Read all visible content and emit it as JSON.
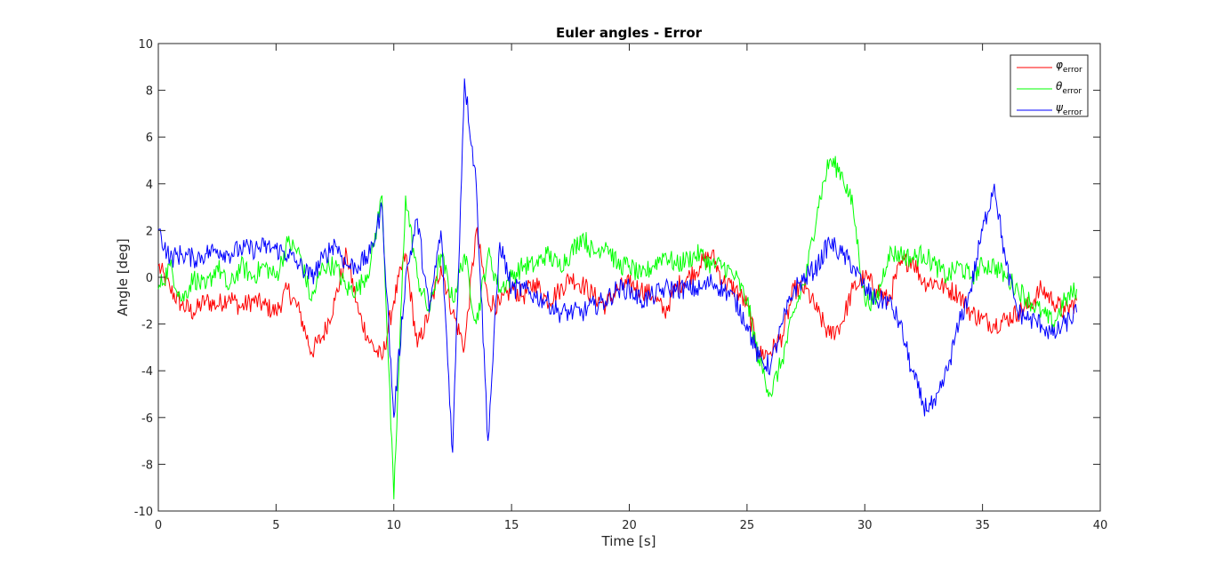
{
  "chart_data": {
    "type": "line",
    "title": "Euler angles - Error",
    "xlabel": "Time [s]",
    "ylabel": "Angle [deg]",
    "xlim": [
      0,
      40
    ],
    "ylim": [
      -10,
      10
    ],
    "xticks": [
      0,
      5,
      10,
      15,
      20,
      25,
      30,
      35,
      40
    ],
    "yticks": [
      -10,
      -8,
      -6,
      -4,
      -2,
      0,
      2,
      4,
      6,
      8,
      10
    ],
    "xtick_labels": [
      "0",
      "5",
      "10",
      "15",
      "20",
      "25",
      "30",
      "35",
      "40"
    ],
    "ytick_labels": [
      "-10",
      "-8",
      "-6",
      "-4",
      "-2",
      "0",
      "2",
      "4",
      "6",
      "8",
      "10"
    ],
    "grid": false,
    "legend_position": "top-right",
    "series": [
      {
        "name": "φ",
        "subscript": "error",
        "color": "#ff0000",
        "x": [
          0,
          0.5,
          1,
          1.5,
          2,
          2.5,
          3,
          3.5,
          4,
          4.5,
          5,
          5.5,
          6,
          6.5,
          7,
          7.5,
          8,
          8.5,
          9,
          9.5,
          10,
          10.5,
          11,
          11.5,
          12,
          12.5,
          13,
          13.5,
          14,
          14.5,
          15,
          15.5,
          16,
          16.5,
          17,
          17.5,
          18,
          18.5,
          19,
          19.5,
          20,
          20.5,
          21,
          21.5,
          22,
          22.5,
          23,
          23.5,
          24,
          24.5,
          25,
          25.5,
          26,
          26.5,
          27,
          27.5,
          28,
          28.5,
          29,
          29.5,
          30,
          30.5,
          31,
          31.5,
          32,
          32.5,
          33,
          33.5,
          34,
          34.5,
          35,
          35.5,
          36,
          36.5,
          37,
          37.5,
          38,
          38.5,
          39
        ],
        "values": [
          0.5,
          -0.5,
          -1.2,
          -1.5,
          -1.0,
          -1.2,
          -0.8,
          -1.3,
          -1.0,
          -1.2,
          -1.5,
          -0.5,
          -1.5,
          -3.2,
          -2.5,
          -1.0,
          1.0,
          -1.5,
          -2.8,
          -3.5,
          -1.0,
          1.0,
          -3.0,
          -1.5,
          0.5,
          -1.5,
          -3.0,
          2.0,
          -1.0,
          -1.2,
          -0.5,
          -0.8,
          -0.2,
          -1.0,
          -0.6,
          0.0,
          -0.3,
          -0.8,
          -1.2,
          -0.5,
          -0.3,
          -0.5,
          -0.8,
          -1.5,
          -0.4,
          0.0,
          0.5,
          1.0,
          -0.2,
          -0.5,
          -1.2,
          -3.3,
          -3.2,
          -2.5,
          -0.5,
          -0.5,
          -1.5,
          -2.5,
          -2.0,
          -0.5,
          0.0,
          -0.5,
          -1.0,
          0.5,
          0.8,
          -0.2,
          -0.2,
          -0.5,
          -0.7,
          -1.5,
          -1.8,
          -2.0,
          -1.8,
          -1.5,
          -1.2,
          -0.5,
          -1.0,
          -1.5,
          -1.0
        ]
      },
      {
        "name": "θ",
        "subscript": "error",
        "color": "#00ff00",
        "x": [
          0,
          0.5,
          1,
          1.5,
          2,
          2.5,
          3,
          3.5,
          4,
          4.5,
          5,
          5.5,
          6,
          6.5,
          7,
          7.5,
          8,
          8.5,
          9,
          9.5,
          10,
          10.5,
          11,
          11.5,
          12,
          12.5,
          13,
          13.5,
          14,
          14.5,
          15,
          15.5,
          16,
          16.5,
          17,
          17.5,
          18,
          18.5,
          19,
          19.5,
          20,
          20.5,
          21,
          21.5,
          22,
          22.5,
          23,
          23.5,
          24,
          24.5,
          25,
          25.5,
          26,
          26.5,
          27,
          27.5,
          28,
          28.5,
          29,
          29.5,
          30,
          30.5,
          31,
          31.5,
          32,
          32.5,
          33,
          33.5,
          34,
          34.5,
          35,
          35.5,
          36,
          36.5,
          37,
          37.5,
          38,
          38.5,
          39
        ],
        "values": [
          -0.5,
          0.5,
          -1.0,
          0.0,
          -0.5,
          0.5,
          -0.5,
          0.5,
          0.0,
          0.5,
          0.0,
          1.5,
          1.0,
          -1.0,
          0.5,
          0.5,
          -0.5,
          -0.5,
          0.5,
          3.5,
          -9.5,
          3.5,
          0.0,
          -1.5,
          1.0,
          -1.0,
          1.0,
          -2.0,
          1.0,
          -0.5,
          0.0,
          0.5,
          0.5,
          1.0,
          0.5,
          1.0,
          1.8,
          1.0,
          1.5,
          0.5,
          0.5,
          0.0,
          0.5,
          1.0,
          0.5,
          0.8,
          1.0,
          0.5,
          0.5,
          0.0,
          -1.0,
          -3.5,
          -5.0,
          -3.5,
          -1.5,
          0.0,
          3.0,
          5.0,
          4.5,
          3.0,
          -1.0,
          -1.0,
          1.0,
          1.0,
          0.8,
          1.0,
          0.5,
          0.0,
          0.5,
          0.0,
          0.5,
          0.5,
          0.0,
          -0.5,
          -1.0,
          -1.5,
          -2.0,
          -1.0,
          -0.5
        ]
      },
      {
        "name": "ψ",
        "subscript": "error",
        "color": "#0000ff",
        "x": [
          0,
          0.5,
          1,
          1.5,
          2,
          2.5,
          3,
          3.5,
          4,
          4.5,
          5,
          5.5,
          6,
          6.5,
          7,
          7.5,
          8,
          8.5,
          9,
          9.5,
          10,
          10.5,
          11,
          11.5,
          12,
          12.5,
          13,
          13.5,
          14,
          14.5,
          15,
          15.5,
          16,
          16.5,
          17,
          17.5,
          18,
          18.5,
          19,
          19.5,
          20,
          20.5,
          21,
          21.5,
          22,
          22.5,
          23,
          23.5,
          24,
          24.5,
          25,
          25.5,
          26,
          26.5,
          27,
          27.5,
          28,
          28.5,
          29,
          29.5,
          30,
          30.5,
          31,
          31.5,
          32,
          32.5,
          33,
          33.5,
          34,
          34.5,
          35,
          35.5,
          36,
          36.5,
          37,
          37.5,
          38,
          38.5,
          39
        ],
        "values": [
          2.0,
          0.8,
          1.0,
          0.8,
          1.0,
          1.2,
          1.0,
          1.2,
          1.2,
          1.3,
          1.2,
          1.0,
          0.5,
          0.0,
          0.8,
          1.5,
          0.5,
          0.5,
          1.0,
          3.0,
          -6.0,
          0.0,
          2.5,
          -1.5,
          2.0,
          -7.5,
          8.5,
          4.0,
          -7.0,
          1.5,
          -0.5,
          -0.5,
          -0.8,
          -1.0,
          -1.5,
          -1.5,
          -1.5,
          -1.2,
          -1.0,
          -0.5,
          -0.5,
          -1.0,
          -0.8,
          -0.5,
          -0.5,
          -0.5,
          -0.5,
          -0.2,
          -0.5,
          -1.0,
          -2.0,
          -3.5,
          -3.8,
          -2.0,
          -0.5,
          0.0,
          0.5,
          1.5,
          1.0,
          0.5,
          -0.5,
          -1.0,
          -1.0,
          -2.0,
          -4.0,
          -5.5,
          -5.5,
          -4.0,
          -2.0,
          -0.5,
          2.0,
          4.0,
          0.5,
          -1.5,
          -1.8,
          -2.0,
          -2.5,
          -2.0,
          -1.5
        ]
      }
    ]
  }
}
